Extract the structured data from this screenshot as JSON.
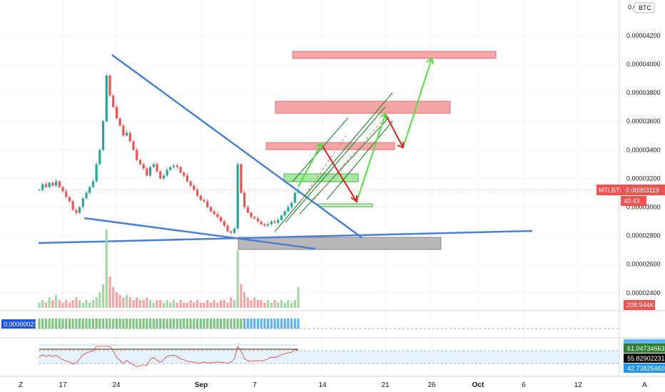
{
  "chart_data": {
    "type": "candlestick",
    "symbol": "MTLBTC",
    "currency": "BTC",
    "last_price": "0.00003119",
    "countdown": "40:43",
    "volume_label": "208.944K",
    "y_ticks": [
      "0.00004200",
      "0.00004000",
      "0.00003800",
      "0.00003600",
      "0.00003400",
      "0.00003200",
      "0.00003000",
      "0.00002800",
      "0.00002600",
      "0.00002400"
    ],
    "top_tick": "0.0",
    "x_ticks": [
      "17",
      "24",
      "Sep",
      "7",
      "14",
      "21",
      "26",
      "Oct",
      "6",
      "12"
    ],
    "ylim": [
      2.32e-05,
      4.3e-05
    ],
    "price_path": [
      3.12e-05,
      3.16e-05,
      3.14e-05,
      3.17e-05,
      3.15e-05,
      3.18e-05,
      3.14e-05,
      3.11e-05,
      3.07e-05,
      3.04e-05,
      2.98e-05,
      2.96e-05,
      3e-05,
      3.06e-05,
      3.1e-05,
      3.14e-05,
      3.18e-05,
      3.3e-05,
      3.4e-05,
      3.6e-05,
      3.92e-05,
      3.78e-05,
      3.7e-05,
      3.62e-05,
      3.57e-05,
      3.5e-05,
      3.52e-05,
      3.46e-05,
      3.4e-05,
      3.33e-05,
      3.3e-05,
      3.27e-05,
      3.22e-05,
      3.28e-05,
      3.3e-05,
      3.25e-05,
      3.2e-05,
      3.22e-05,
      3.26e-05,
      3.28e-05,
      3.29e-05,
      3.28e-05,
      3.24e-05,
      3.22e-05,
      3.18e-05,
      3.15e-05,
      3.12e-05,
      3.08e-05,
      3.05e-05,
      3.04e-05,
      3e-05,
      2.97e-05,
      2.95e-05,
      2.93e-05,
      2.9e-05,
      2.87e-05,
      2.83e-05,
      2.82e-05,
      2.85e-05,
      3.3e-05,
      3.1e-05,
      3e-05,
      2.96e-05,
      2.93e-05,
      2.92e-05,
      2.9e-05,
      2.88e-05,
      2.87e-05,
      2.88e-05,
      2.9e-05,
      2.89e-05,
      2.91e-05,
      2.94e-05,
      2.97e-05,
      3e-05,
      3.03e-05,
      3.1e-05,
      3.12e-05
    ],
    "volumes": [
      2,
      3,
      2,
      4,
      3,
      5,
      3,
      2,
      3,
      2,
      3,
      4,
      3,
      2,
      3,
      2,
      3,
      4,
      6,
      9,
      30,
      12,
      8,
      6,
      5,
      4,
      5,
      4,
      3,
      4,
      3,
      3,
      4,
      3,
      2,
      3,
      3,
      2,
      3,
      2,
      3,
      2,
      3,
      2,
      2,
      3,
      2,
      3,
      2,
      2,
      3,
      2,
      3,
      2,
      3,
      3,
      2,
      4,
      3,
      22,
      9,
      6,
      4,
      3,
      4,
      3,
      3,
      2,
      3,
      2,
      3,
      2,
      3,
      2,
      3,
      2,
      3,
      8
    ],
    "oscillator_label": "0.00000021",
    "indicator_values": [
      "61.04734663",
      "55.82902231",
      "42.73825460"
    ]
  }
}
